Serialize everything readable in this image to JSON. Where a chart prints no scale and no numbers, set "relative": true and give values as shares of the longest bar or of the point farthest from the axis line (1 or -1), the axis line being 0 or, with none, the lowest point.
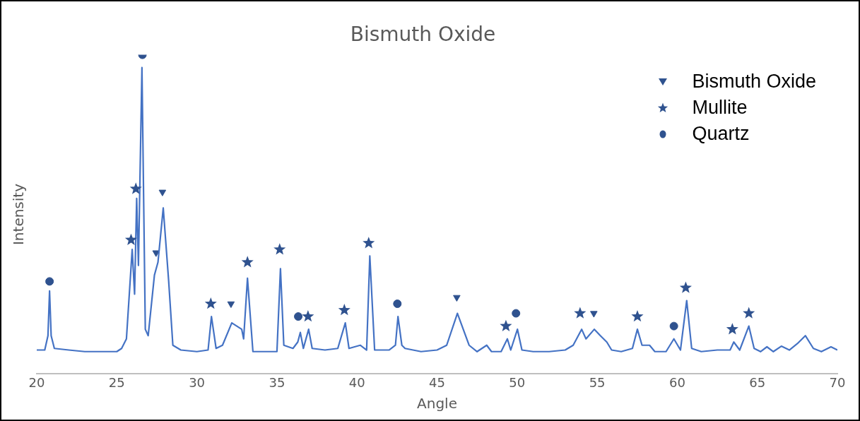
{
  "chart_data": {
    "type": "line",
    "title": "Bismuth Oxide",
    "xlabel": "Angle",
    "ylabel": "Intensity",
    "relative": true,
    "xlim": [
      20,
      70
    ],
    "xticks": [
      20,
      25,
      30,
      35,
      40,
      45,
      50,
      55,
      60,
      65,
      70
    ],
    "grid": false,
    "legend": "top right",
    "series": [
      {
        "color": "#4472c4",
        "marker": "none",
        "x": [
          20,
          20.5,
          20.7,
          20.8,
          20.9,
          21.1,
          22,
          23,
          24,
          25,
          25.3,
          25.6,
          25.96,
          26.11,
          26.24,
          26.35,
          26.57,
          26.78,
          26.96,
          27.35,
          27.57,
          27.9,
          28.24,
          28.5,
          29,
          30,
          30.7,
          30.91,
          31.2,
          31.6,
          32.18,
          32.8,
          32.92,
          33.16,
          33.5,
          34,
          35,
          35.22,
          35.43,
          36,
          36.3,
          36.46,
          36.65,
          36.98,
          37.2,
          38,
          38.8,
          39.27,
          39.5,
          40.2,
          40.6,
          40.8,
          41.1,
          42,
          42.4,
          42.56,
          42.8,
          43,
          44,
          45,
          45.6,
          46.27,
          47,
          47.5,
          48.1,
          48.4,
          49,
          49.39,
          49.6,
          50.02,
          50.3,
          51,
          52,
          53,
          53.5,
          54.03,
          54.3,
          54.82,
          55.2,
          55.6,
          55.9,
          56.5,
          57.2,
          57.51,
          57.8,
          58.27,
          58.6,
          59.3,
          59.79,
          60.2,
          60.59,
          60.9,
          61.5,
          62.5,
          63.3,
          63.53,
          63.9,
          64.47,
          64.8,
          65.2,
          65.6,
          66,
          66.5,
          67,
          67.5,
          68,
          68.5,
          69,
          69.6,
          70
        ],
        "values": [
          0.075,
          0.075,
          0.12,
          0.26,
          0.12,
          0.08,
          0.075,
          0.07,
          0.07,
          0.07,
          0.08,
          0.11,
          0.39,
          0.25,
          0.55,
          0.34,
          0.96,
          0.14,
          0.12,
          0.31,
          0.35,
          0.52,
          0.29,
          0.09,
          0.075,
          0.07,
          0.075,
          0.18,
          0.08,
          0.09,
          0.16,
          0.14,
          0.11,
          0.3,
          0.07,
          0.07,
          0.07,
          0.33,
          0.09,
          0.08,
          0.1,
          0.13,
          0.08,
          0.14,
          0.08,
          0.075,
          0.08,
          0.16,
          0.08,
          0.09,
          0.075,
          0.37,
          0.075,
          0.075,
          0.09,
          0.18,
          0.09,
          0.08,
          0.07,
          0.075,
          0.09,
          0.19,
          0.09,
          0.07,
          0.09,
          0.07,
          0.07,
          0.11,
          0.075,
          0.14,
          0.075,
          0.07,
          0.07,
          0.075,
          0.09,
          0.14,
          0.11,
          0.14,
          0.12,
          0.1,
          0.075,
          0.07,
          0.08,
          0.14,
          0.09,
          0.09,
          0.07,
          0.07,
          0.11,
          0.075,
          0.23,
          0.08,
          0.07,
          0.075,
          0.075,
          0.1,
          0.075,
          0.15,
          0.08,
          0.07,
          0.085,
          0.07,
          0.087,
          0.075,
          0.095,
          0.12,
          0.08,
          0.07,
          0.085,
          0.075
        ]
      },
      {
        "type": "scatter",
        "name": "Bismuth Oxide",
        "color": "#2f528f",
        "marker": "triangle",
        "x": [
          27.45,
          27.85,
          32.13,
          46.23,
          54.79
        ],
        "values": [
          0.38,
          0.57,
          0.22,
          0.24,
          0.19
        ]
      },
      {
        "type": "scatter",
        "name": "Mullite",
        "color": "#2f528f",
        "marker": "star",
        "x": [
          25.89,
          26.19,
          30.87,
          33.16,
          35.17,
          36.94,
          39.21,
          40.73,
          49.3,
          53.93,
          57.51,
          60.53,
          63.44,
          64.47
        ],
        "values": [
          0.42,
          0.58,
          0.22,
          0.35,
          0.39,
          0.18,
          0.2,
          0.41,
          0.15,
          0.19,
          0.18,
          0.27,
          0.14,
          0.19
        ]
      },
      {
        "type": "scatter",
        "name": "Quartz",
        "color": "#2f528f",
        "marker": "circle",
        "x": [
          20.8,
          26.6,
          36.33,
          42.52,
          49.93,
          59.79
        ],
        "values": [
          0.29,
          1,
          0.18,
          0.22,
          0.19,
          0.15
        ]
      }
    ]
  }
}
